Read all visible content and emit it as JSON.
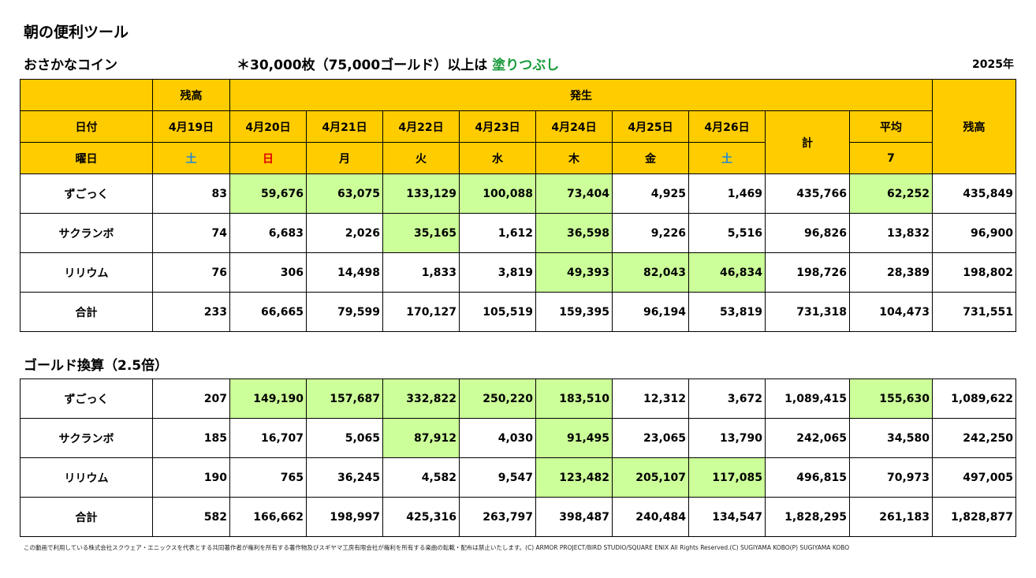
{
  "title": "朝の便利ツール",
  "subtitle": "おさかなコイン",
  "note": {
    "prefix": "＊30,000枚（75,000ゴールド）以上は ",
    "highlight": "塗りつぶし"
  },
  "year": "2025年",
  "header": {
    "zandaka": "残高",
    "hassei": "発生",
    "hizuke": "日付",
    "youbi": "曜日",
    "kei": "計",
    "heikin": "平均",
    "heikin_days": "7",
    "zandaka_end": "残高",
    "dates": [
      "4月19日",
      "4月20日",
      "4月21日",
      "4月22日",
      "4月23日",
      "4月24日",
      "4月25日",
      "4月26日"
    ],
    "weekdays": [
      "土",
      "日",
      "月",
      "火",
      "水",
      "木",
      "金",
      "土"
    ]
  },
  "colors": {
    "header_bg": "#ffcc00",
    "highlight_bg": "#ccff99",
    "saturday": "#1e88d8",
    "sunday": "#e00000",
    "note_green": "#1a9a3a"
  },
  "coins": {
    "rows": [
      {
        "name": "ずごっく",
        "cells": [
          "83",
          "59,676",
          "63,075",
          "133,129",
          "100,088",
          "73,404",
          "4,925",
          "1,469",
          "435,766",
          "62,252",
          "435,849"
        ],
        "hl": [
          1,
          2,
          3,
          4,
          5,
          9
        ]
      },
      {
        "name": "サクランボ",
        "cells": [
          "74",
          "6,683",
          "2,026",
          "35,165",
          "1,612",
          "36,598",
          "9,226",
          "5,516",
          "96,826",
          "13,832",
          "96,900"
        ],
        "hl": [
          3,
          5
        ]
      },
      {
        "name": "リリウム",
        "cells": [
          "76",
          "306",
          "14,498",
          "1,833",
          "3,819",
          "49,393",
          "82,043",
          "46,834",
          "198,726",
          "28,389",
          "198,802"
        ],
        "hl": [
          5,
          6,
          7
        ]
      },
      {
        "name": "合計",
        "cells": [
          "233",
          "66,665",
          "79,599",
          "170,127",
          "105,519",
          "159,395",
          "96,194",
          "53,819",
          "731,318",
          "104,473",
          "731,551"
        ],
        "hl": []
      }
    ]
  },
  "gold": {
    "title": "ゴールド換算（2.5倍）",
    "rows": [
      {
        "name": "ずごっく",
        "cells": [
          "207",
          "149,190",
          "157,687",
          "332,822",
          "250,220",
          "183,510",
          "12,312",
          "3,672",
          "1,089,415",
          "155,630",
          "1,089,622"
        ],
        "hl": [
          1,
          2,
          3,
          4,
          5,
          9
        ]
      },
      {
        "name": "サクランボ",
        "cells": [
          "185",
          "16,707",
          "5,065",
          "87,912",
          "4,030",
          "91,495",
          "23,065",
          "13,790",
          "242,065",
          "34,580",
          "242,250"
        ],
        "hl": [
          3,
          5
        ]
      },
      {
        "name": "リリウム",
        "cells": [
          "190",
          "765",
          "36,245",
          "4,582",
          "9,547",
          "123,482",
          "205,107",
          "117,085",
          "496,815",
          "70,973",
          "497,005"
        ],
        "hl": [
          5,
          6,
          7
        ]
      },
      {
        "name": "合計",
        "cells": [
          "582",
          "166,662",
          "198,997",
          "425,316",
          "263,797",
          "398,487",
          "240,484",
          "134,547",
          "1,828,295",
          "261,183",
          "1,828,877"
        ],
        "hl": []
      }
    ]
  },
  "footer": "この動画で利用している株式会社スクウェア・エニックスを代表とする共同著作者が権利を所有する著作物及びスギヤマ工房有限会社が権利を所有する楽曲の転載・配布は禁止いたします。(C) ARMOR PROJECT/BIRD STUDIO/SQUARE ENIX All Rights Reserved.(C) SUGIYAMA KOBO(P) SUGIYAMA KOBO"
}
